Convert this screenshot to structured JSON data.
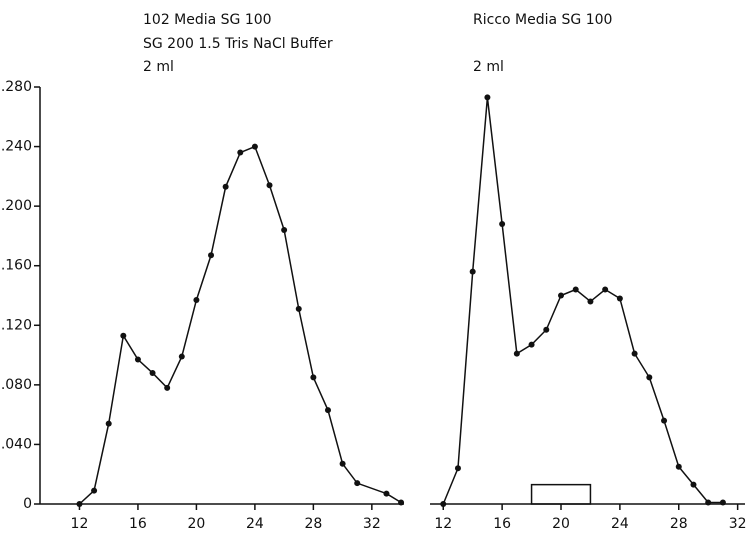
{
  "chart_data": [
    {
      "type": "line",
      "title_lines": [
        "102 Media SG 100",
        "SG 200   1.5 Tris NaCl Buffer",
        "2 ml"
      ],
      "x": [
        12,
        13,
        14,
        15,
        16,
        17,
        18,
        19,
        20,
        21,
        22,
        23,
        24,
        25,
        26,
        27,
        28,
        29,
        30,
        31,
        33,
        34
      ],
      "series": [
        {
          "color": "#111111",
          "values": [
            0,
            0.009,
            0.054,
            0.113,
            0.097,
            0.088,
            0.078,
            0.099,
            0.137,
            0.167,
            0.213,
            0.236,
            0.24,
            0.214,
            0.184,
            0.131,
            0.085,
            0.063,
            0.027,
            0.014,
            0.007,
            0.001
          ]
        }
      ],
      "xlim": [
        9.3,
        34.2
      ],
      "xticks": [
        12,
        16,
        20,
        24,
        28,
        32
      ],
      "ylim": [
        0,
        0.28
      ],
      "yticks": [
        0,
        {
          "value": 0.04,
          "label": ".040"
        },
        {
          "value": 0.08,
          "label": ".080"
        },
        {
          "value": 0.12,
          "label": ".120"
        },
        {
          "value": 0.16,
          "label": ".160"
        },
        {
          "value": 0.2,
          "label": ".200"
        },
        {
          "value": 0.24,
          "label": ".240"
        },
        {
          "value": 0.28,
          "label": ".280"
        }
      ]
    },
    {
      "type": "line",
      "title_lines": [
        "Ricco Media SG 100",
        "2 ml"
      ],
      "x": [
        12,
        13,
        14,
        15,
        16,
        17,
        18,
        19,
        20,
        21,
        22,
        23,
        24,
        25,
        26,
        27,
        28,
        29,
        30,
        31
      ],
      "series": [
        {
          "color": "#111111",
          "values": [
            0,
            0.024,
            0.156,
            0.273,
            0.188,
            0.101,
            0.107,
            0.117,
            0.14,
            0.144,
            0.136,
            0.144,
            0.138,
            0.101,
            0.085,
            0.056,
            0.025,
            0.013,
            0.001,
            0.001
          ]
        }
      ],
      "pooled_range": {
        "x": [
          18,
          22
        ],
        "value": 0.013
      },
      "xlim": [
        11.1,
        32.5
      ],
      "xticks": [
        12,
        16,
        20,
        24,
        28,
        32
      ],
      "ylim": [
        0,
        0.28
      ]
    }
  ]
}
